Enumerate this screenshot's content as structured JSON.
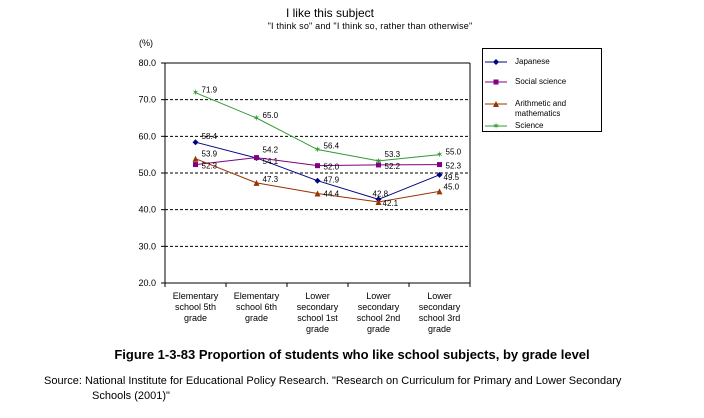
{
  "chart_data": {
    "type": "line",
    "title": "I like this subject",
    "subtitle": "\"I think so\" and \"I think so, rather than otherwise\"",
    "unit_label": "(%)",
    "ylim": [
      20,
      80
    ],
    "yticks": [
      "20.0",
      "30.0",
      "40.0",
      "50.0",
      "60.0",
      "70.0",
      "80.0"
    ],
    "grid": "horizontal dashed",
    "legend_position": "right",
    "categories": [
      [
        "Elementary",
        "school 5th",
        "grade"
      ],
      [
        "Elementary",
        "school 6th",
        "grade"
      ],
      [
        "Lower",
        "secondary",
        "school 1st",
        "grade"
      ],
      [
        "Lower",
        "secondary",
        "school 2nd",
        "grade"
      ],
      [
        "Lower",
        "secondary",
        "school 3rd",
        "grade"
      ]
    ],
    "series": [
      {
        "name": "Japanese",
        "values": [
          58.4,
          54.1,
          47.9,
          42.8,
          49.5
        ],
        "labels": [
          "58.4",
          "54.1",
          "47.9",
          "42.8",
          "49.5"
        ],
        "color": "#000080",
        "marker": "diamond"
      },
      {
        "name": "Social science",
        "values": [
          52.3,
          54.2,
          52.0,
          52.2,
          52.3
        ],
        "labels": [
          "52.3",
          "54.2",
          "52.0",
          "52.2",
          "52.3"
        ],
        "color": "#800080",
        "marker": "square"
      },
      {
        "name": "Arithmetic and mathematics",
        "values": [
          53.9,
          47.3,
          44.4,
          42.1,
          45.0
        ],
        "labels": [
          "53.9",
          "47.3",
          "44.4",
          "42.1",
          "45.0"
        ],
        "color": "#993300",
        "marker": "triangle"
      },
      {
        "name": "Science",
        "values": [
          71.9,
          65.0,
          56.4,
          53.3,
          55.0
        ],
        "labels": [
          "71.9",
          "65.0",
          "56.4",
          "53.3",
          "55.0"
        ],
        "color": "#339933",
        "marker": "star"
      }
    ]
  },
  "legend": {
    "japanese": "Japanese",
    "social": "Social science",
    "math_line1": "Arithmetic and",
    "math_line2": "mathematics",
    "science": "Science"
  },
  "caption": "Figure 1-3-83    Proportion of students who like school subjects, by grade level",
  "source_line1": "Source: National Institute for Educational Policy Research. \"Research on Curriculum for Primary and Lower Secondary",
  "source_line2": "Schools (2001)\""
}
